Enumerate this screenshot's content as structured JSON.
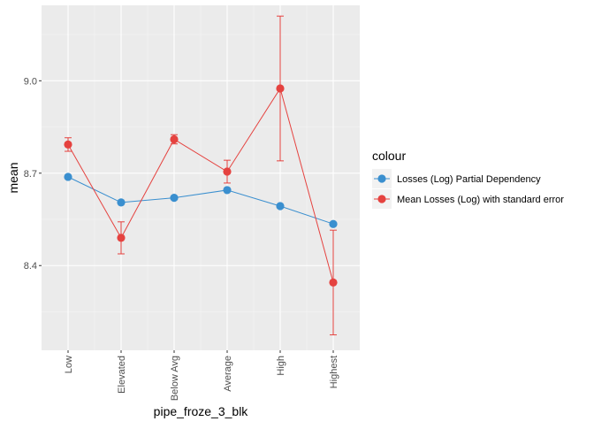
{
  "chart_data": {
    "type": "line",
    "xlabel": "pipe_froze_3_blk",
    "ylabel": "mean",
    "categories": [
      "Low",
      "Elevated",
      "Below Avg",
      "Average",
      "High",
      "Highest"
    ],
    "yticks": [
      8.4,
      8.7,
      9.0
    ],
    "ytick_labels": [
      "8.4",
      "8.7",
      "9.0"
    ],
    "ylim": [
      8.125,
      9.245
    ],
    "grid": true,
    "legend": {
      "title": "colour",
      "placement": "right"
    },
    "series": [
      {
        "name": "Losses (Log) Partial Dependency",
        "color": "#3a8fcf",
        "values": [
          8.688,
          8.605,
          8.62,
          8.645,
          8.593,
          8.535
        ]
      },
      {
        "name": "Mean Losses (Log) with standard error",
        "color": "#e5423f",
        "values": [
          8.793,
          8.49,
          8.81,
          8.705,
          8.975,
          8.345
        ],
        "error": [
          0.022,
          0.052,
          0.015,
          0.037,
          0.235,
          0.17
        ]
      }
    ]
  }
}
